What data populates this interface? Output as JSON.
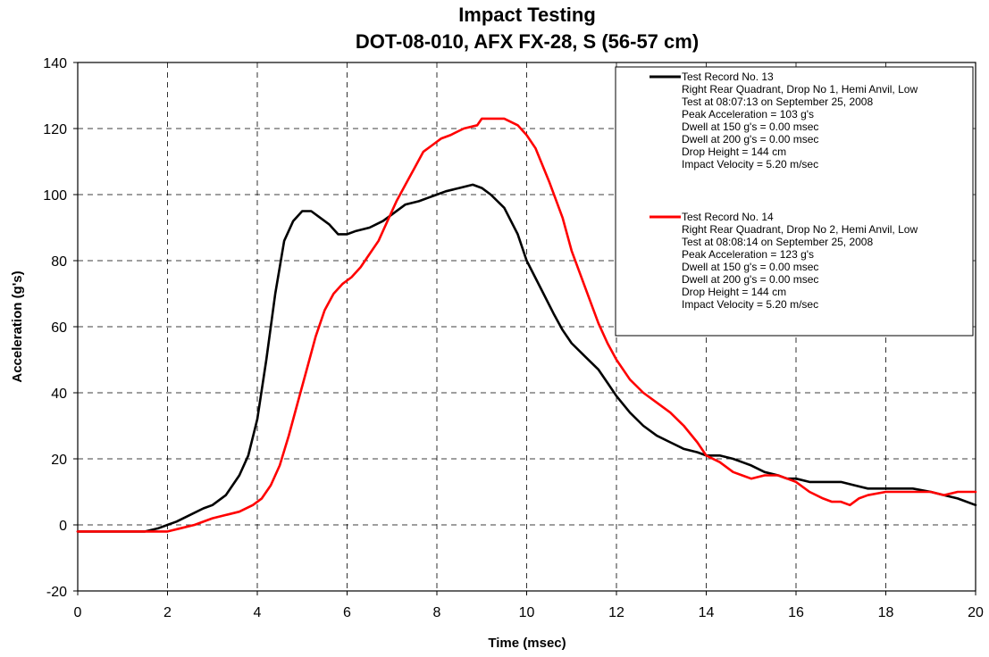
{
  "chart_data": {
    "type": "line",
    "title": "Impact Testing",
    "subtitle": "DOT-08-010, AFX FX-28, S (56-57 cm)",
    "xlabel": "Time (msec)",
    "ylabel": "Acceleration (g's)",
    "xlim": [
      0,
      20
    ],
    "ylim": [
      -20,
      140
    ],
    "x_ticks": [
      0,
      2,
      4,
      6,
      8,
      10,
      12,
      14,
      16,
      18,
      20
    ],
    "y_ticks": [
      -20,
      0,
      20,
      40,
      60,
      80,
      100,
      120,
      140
    ],
    "grid": true,
    "legend_position": "top-right",
    "series": [
      {
        "name": "Test Record No. 13",
        "color": "#000000",
        "legend_lines": [
          "Test Record No. 13",
          "Right Rear Quadrant, Drop No 1, Hemi Anvil, Low",
          "Test at 08:07:13 on September 25, 2008",
          "Peak Acceleration = 103 g's",
          "Dwell at 150 g's = 0.00 msec",
          "Dwell at 200 g's = 0.00 msec",
          "Drop Height = 144 cm",
          "Impact Velocity = 5.20 m/sec"
        ],
        "x": [
          0,
          0.5,
          1.0,
          1.5,
          1.8,
          2.0,
          2.2,
          2.5,
          2.8,
          3.0,
          3.3,
          3.6,
          3.8,
          4.0,
          4.2,
          4.4,
          4.6,
          4.8,
          5.0,
          5.2,
          5.4,
          5.6,
          5.8,
          6.0,
          6.2,
          6.5,
          6.8,
          7.0,
          7.3,
          7.6,
          7.8,
          8.0,
          8.2,
          8.5,
          8.8,
          9.0,
          9.2,
          9.5,
          9.8,
          10.0,
          10.3,
          10.6,
          10.8,
          11.0,
          11.3,
          11.6,
          11.8,
          12.0,
          12.3,
          12.6,
          12.9,
          13.2,
          13.5,
          13.8,
          14.0,
          14.3,
          14.6,
          14.8,
          15.0,
          15.3,
          15.6,
          15.8,
          16.0,
          16.3,
          16.6,
          17.0,
          17.3,
          17.6,
          18.0,
          18.3,
          18.6,
          19.0,
          19.3,
          19.6,
          20.0
        ],
        "y": [
          -2,
          -2,
          -2,
          -2,
          -1,
          0,
          1,
          3,
          5,
          6,
          9,
          15,
          21,
          32,
          50,
          70,
          86,
          92,
          95,
          95,
          93,
          91,
          88,
          88,
          89,
          90,
          92,
          94,
          97,
          98,
          99,
          100,
          101,
          102,
          103,
          102,
          100,
          96,
          88,
          80,
          72,
          64,
          59,
          55,
          51,
          47,
          43,
          39,
          34,
          30,
          27,
          25,
          23,
          22,
          21,
          21,
          20,
          19,
          18,
          16,
          15,
          14,
          14,
          13,
          13,
          13,
          12,
          11,
          11,
          11,
          11,
          10,
          9,
          8,
          6
        ]
      },
      {
        "name": "Test Record No. 14",
        "color": "#ff0000",
        "legend_lines": [
          "Test Record No. 14",
          "Right Rear Quadrant, Drop No 2, Hemi Anvil, Low",
          "Test at 08:08:14 on September 25, 2008",
          "Peak Acceleration = 123 g's",
          "Dwell at 150 g's = 0.00 msec",
          "Dwell at 200 g's = 0.00 msec",
          "Drop Height = 144 cm",
          "Impact Velocity = 5.20 m/sec"
        ],
        "x": [
          0,
          0.5,
          1.0,
          1.5,
          2.0,
          2.3,
          2.6,
          3.0,
          3.3,
          3.6,
          3.9,
          4.1,
          4.3,
          4.5,
          4.7,
          4.9,
          5.1,
          5.3,
          5.5,
          5.7,
          5.9,
          6.1,
          6.3,
          6.5,
          6.7,
          6.9,
          7.1,
          7.3,
          7.5,
          7.7,
          7.9,
          8.1,
          8.3,
          8.6,
          8.9,
          9.0,
          9.2,
          9.5,
          9.8,
          10.0,
          10.2,
          10.5,
          10.8,
          11.0,
          11.3,
          11.6,
          11.8,
          12.0,
          12.3,
          12.6,
          12.9,
          13.2,
          13.5,
          13.8,
          14.0,
          14.3,
          14.6,
          14.8,
          15.0,
          15.3,
          15.6,
          15.8,
          16.0,
          16.3,
          16.6,
          16.8,
          17.0,
          17.2,
          17.4,
          17.6,
          18.0,
          18.3,
          18.6,
          19.0,
          19.3,
          19.6,
          20.0
        ],
        "y": [
          -2,
          -2,
          -2,
          -2,
          -2,
          -1,
          0,
          2,
          3,
          4,
          6,
          8,
          12,
          18,
          27,
          37,
          47,
          57,
          65,
          70,
          73,
          75,
          78,
          82,
          86,
          92,
          98,
          103,
          108,
          113,
          115,
          117,
          118,
          120,
          121,
          123,
          123,
          123,
          121,
          118,
          114,
          104,
          93,
          83,
          72,
          61,
          55,
          50,
          44,
          40,
          37,
          34,
          30,
          25,
          21,
          19,
          16,
          15,
          14,
          15,
          15,
          14,
          13,
          10,
          8,
          7,
          7,
          6,
          8,
          9,
          10,
          10,
          10,
          10,
          9,
          10,
          10
        ]
      }
    ]
  }
}
